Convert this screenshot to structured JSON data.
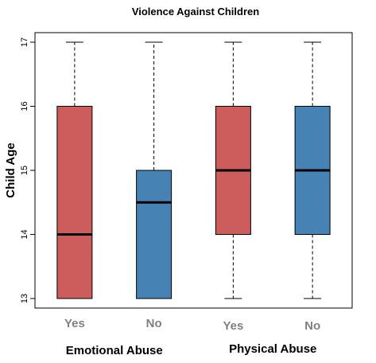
{
  "chart_data": {
    "type": "box",
    "title": "Violence Against Children",
    "ylabel": "Child Age",
    "xlabel": "",
    "ylim": [
      13,
      17
    ],
    "yticks": [
      13,
      14,
      15,
      16,
      17
    ],
    "grid": false,
    "categories": [
      "Yes",
      "No",
      "Yes",
      "No"
    ],
    "groups": [
      {
        "label": "Emotional Abuse",
        "categories": [
          0,
          1
        ]
      },
      {
        "label": "Physical Abuse",
        "categories": [
          2,
          3
        ]
      }
    ],
    "boxes": [
      {
        "label": "Yes",
        "group": "Emotional Abuse",
        "min": 13,
        "q1": 13,
        "median": 14,
        "q3": 16,
        "max": 17,
        "color": "#cd5c5c"
      },
      {
        "label": "No",
        "group": "Emotional Abuse",
        "min": 13,
        "q1": 13,
        "median": 14.5,
        "q3": 15,
        "max": 17,
        "color": "#4682b4"
      },
      {
        "label": "Yes",
        "group": "Physical Abuse",
        "min": 13,
        "q1": 14,
        "median": 15,
        "q3": 16,
        "max": 17,
        "color": "#cd5c5c"
      },
      {
        "label": "No",
        "group": "Physical Abuse",
        "min": 13,
        "q1": 14,
        "median": 15,
        "q3": 16,
        "max": 17,
        "color": "#4682b4"
      }
    ]
  }
}
